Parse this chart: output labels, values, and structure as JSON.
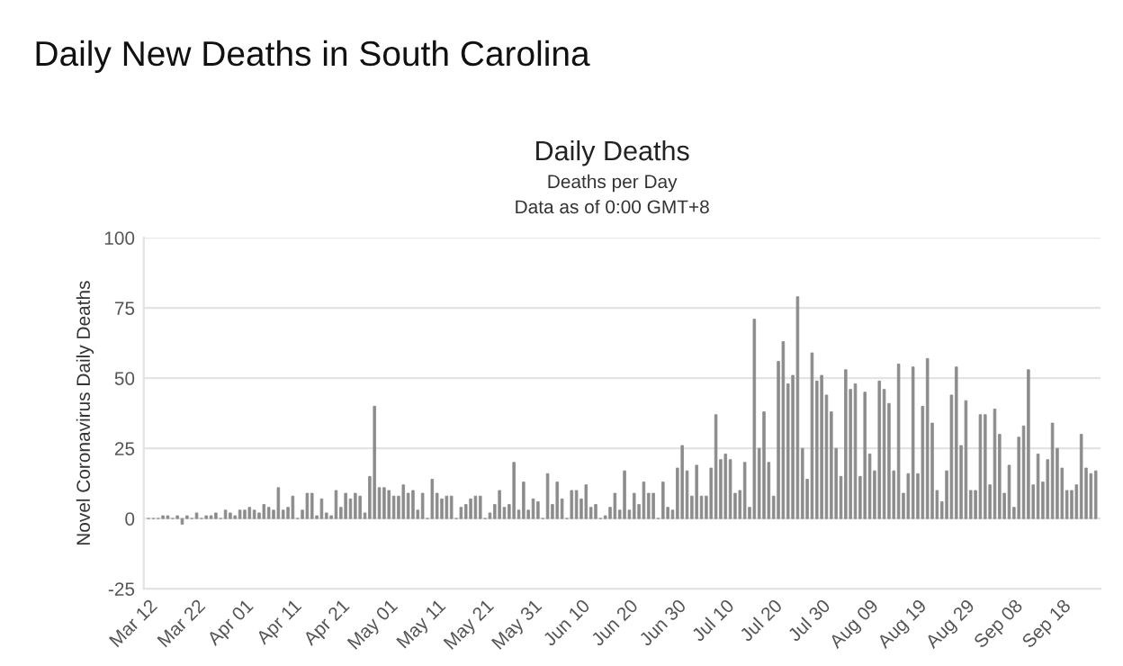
{
  "chart_data": {
    "type": "bar",
    "title": "Daily New Deaths in South Carolina",
    "subtitle": "Daily Deaths",
    "annotations": [
      "Deaths per Day",
      "Data as of 0:00 GMT+8"
    ],
    "ylabel": "Novel Coronavirus Daily Deaths",
    "categories": [
      "Mar 12",
      null,
      null,
      null,
      null,
      null,
      null,
      null,
      null,
      null,
      "Mar 22",
      null,
      null,
      null,
      null,
      null,
      null,
      null,
      null,
      null,
      "Apr 01",
      null,
      null,
      null,
      null,
      null,
      null,
      null,
      null,
      null,
      "Apr 11",
      null,
      null,
      null,
      null,
      null,
      null,
      null,
      null,
      null,
      "Apr 21",
      null,
      null,
      null,
      null,
      null,
      null,
      null,
      null,
      null,
      "May 01",
      null,
      null,
      null,
      null,
      null,
      null,
      null,
      null,
      null,
      "May 11",
      null,
      null,
      null,
      null,
      null,
      null,
      null,
      null,
      null,
      "May 21",
      null,
      null,
      null,
      null,
      null,
      null,
      null,
      null,
      null,
      "May 31",
      null,
      null,
      null,
      null,
      null,
      null,
      null,
      null,
      null,
      "Jun 10",
      null,
      null,
      null,
      null,
      null,
      null,
      null,
      null,
      null,
      "Jun 20",
      null,
      null,
      null,
      null,
      null,
      null,
      null,
      null,
      null,
      "Jun 30",
      null,
      null,
      null,
      null,
      null,
      null,
      null,
      null,
      null,
      "Jul 10",
      null,
      null,
      null,
      null,
      null,
      null,
      null,
      null,
      null,
      "Jul 20",
      null,
      null,
      null,
      null,
      null,
      null,
      null,
      null,
      null,
      "Jul 30",
      null,
      null,
      null,
      null,
      null,
      null,
      null,
      null,
      null,
      "Aug 09",
      null,
      null,
      null,
      null,
      null,
      null,
      null,
      null,
      null,
      "Aug 19",
      null,
      null,
      null,
      null,
      null,
      null,
      null,
      null,
      null,
      "Aug 29",
      null,
      null,
      null,
      null,
      null,
      null,
      null,
      null,
      null,
      "Sep 08",
      null,
      null,
      null,
      null,
      null,
      null,
      null,
      null,
      null,
      "Sep 18",
      null,
      null,
      null,
      null,
      null,
      null,
      null
    ],
    "values": [
      0,
      0,
      0,
      1,
      1,
      0,
      1,
      -2,
      1,
      0,
      2,
      0,
      1,
      1,
      2,
      0,
      3,
      2,
      1,
      3,
      3,
      4,
      3,
      2,
      5,
      4,
      3,
      11,
      3,
      4,
      8,
      0,
      3,
      9,
      9,
      1,
      7,
      2,
      1,
      10,
      4,
      9,
      7,
      9,
      8,
      2,
      15,
      40,
      11,
      11,
      10,
      8,
      8,
      12,
      9,
      10,
      3,
      9,
      0,
      14,
      9,
      7,
      8,
      8,
      0,
      4,
      5,
      7,
      8,
      8,
      0,
      2,
      5,
      10,
      4,
      5,
      20,
      3,
      13,
      3,
      7,
      6,
      0,
      16,
      5,
      13,
      7,
      0,
      10,
      10,
      7,
      12,
      4,
      5,
      0,
      1,
      4,
      9,
      3,
      17,
      3,
      9,
      5,
      13,
      9,
      9,
      0,
      13,
      4,
      3,
      18,
      26,
      17,
      8,
      19,
      8,
      8,
      18,
      37,
      21,
      23,
      21,
      9,
      10,
      20,
      4,
      71,
      25,
      38,
      20,
      8,
      56,
      63,
      48,
      51,
      79,
      25,
      14,
      59,
      49,
      51,
      44,
      38,
      25,
      15,
      53,
      46,
      48,
      15,
      45,
      23,
      17,
      49,
      46,
      41,
      17,
      55,
      9,
      16,
      54,
      16,
      40,
      57,
      34,
      10,
      6,
      17,
      44,
      54,
      26,
      42,
      10,
      10,
      37,
      37,
      12,
      39,
      30,
      9,
      19,
      4,
      29,
      33,
      53,
      12,
      23,
      13,
      21,
      34,
      25,
      18,
      10,
      10,
      12,
      30,
      18,
      16,
      17
    ],
    "color": "#8c8c8c",
    "ylim": [
      -25,
      100
    ],
    "yticks": [
      -25,
      0,
      25,
      50,
      75,
      100
    ],
    "grid": "y"
  }
}
